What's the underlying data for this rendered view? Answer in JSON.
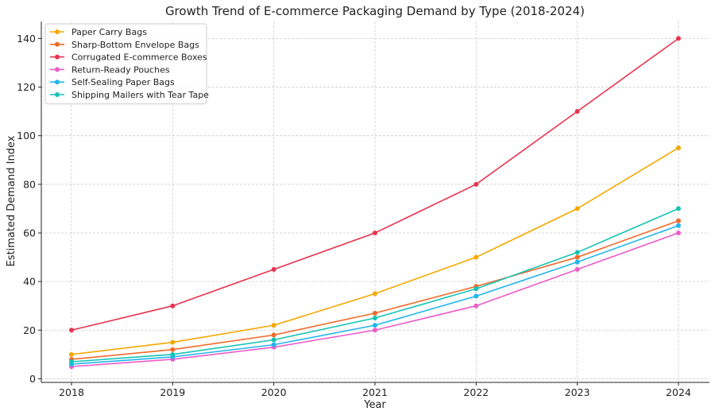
{
  "chart_data": {
    "type": "line",
    "title": "Growth Trend of E-commerce Packaging Demand by Type (2018-2024)",
    "xlabel": "Year",
    "ylabel": "Estimated Demand Index",
    "x": [
      "2018",
      "2019",
      "2020",
      "2021",
      "2022",
      "2023",
      "2024"
    ],
    "ylim": [
      -1.5,
      147
    ],
    "yticks": [
      0,
      20,
      40,
      60,
      80,
      100,
      120,
      140
    ],
    "grid": true,
    "legend_position": "top-left",
    "series": [
      {
        "name": "Paper Carry Bags",
        "color": "#f5a800",
        "values": [
          10,
          15,
          22,
          35,
          50,
          70,
          95
        ]
      },
      {
        "name": "Sharp-Bottom Envelope Bags",
        "color": "#f06a2a",
        "values": [
          8,
          12,
          18,
          27,
          38,
          50,
          65
        ]
      },
      {
        "name": "Corrugated E-commerce Boxes",
        "color": "#e8334f",
        "values": [
          20,
          30,
          45,
          60,
          80,
          110,
          140
        ]
      },
      {
        "name": "Return-Ready Pouches",
        "color": "#ee5cc8",
        "values": [
          5,
          8,
          13,
          20,
          30,
          45,
          60
        ]
      },
      {
        "name": "Self-Sealing Paper Bags",
        "color": "#22b5ee",
        "values": [
          6,
          9,
          14,
          22,
          34,
          48,
          63
        ]
      },
      {
        "name": "Shipping Mailers with Tear Tape",
        "color": "#14c4b4",
        "values": [
          7,
          10,
          16,
          25,
          37,
          52,
          70
        ]
      }
    ]
  }
}
